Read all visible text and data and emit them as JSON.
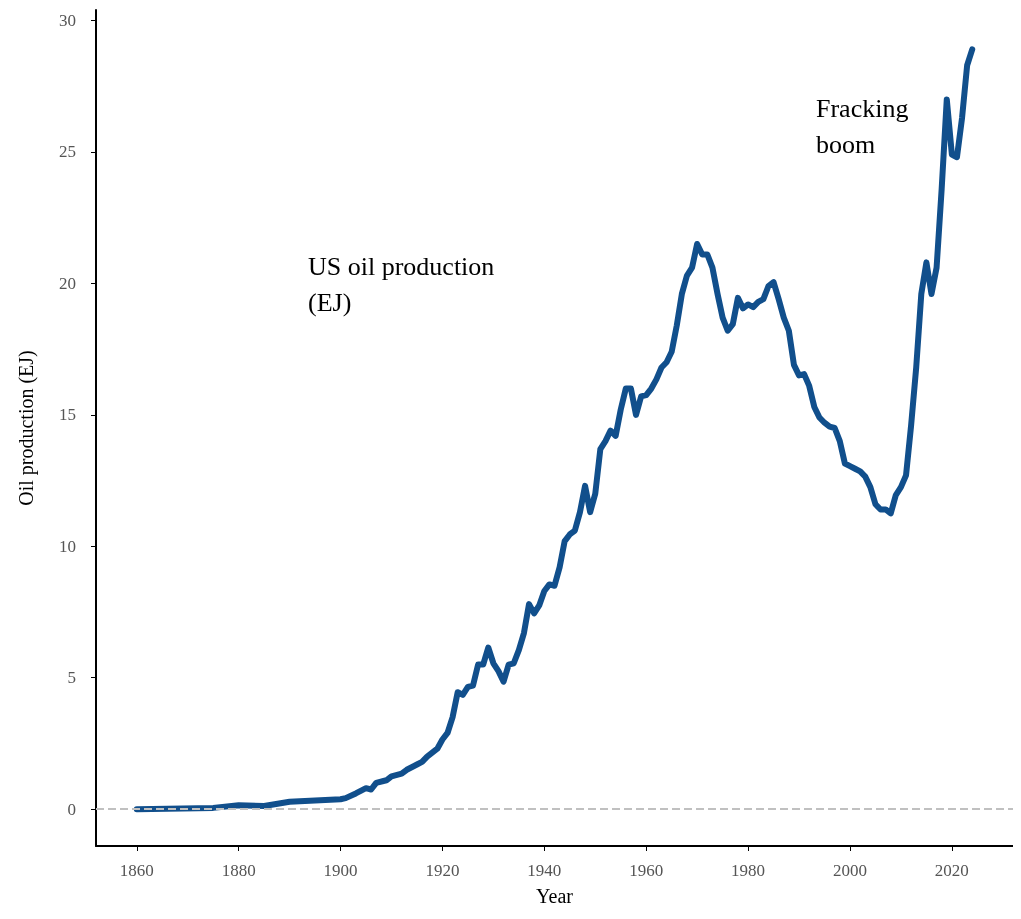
{
  "chart_data": {
    "type": "line",
    "xlabel": "Year",
    "ylabel": "Oil production (EJ)",
    "annotations": [
      "US oil production\n(EJ)",
      "Fracking\nboom"
    ],
    "x": [
      1860,
      1875,
      1880,
      1885,
      1890,
      1900,
      1901,
      1903,
      1905,
      1906,
      1907,
      1909,
      1910,
      1912,
      1913,
      1915,
      1916,
      1917,
      1919,
      1920,
      1921,
      1922,
      1923,
      1924,
      1925,
      1926,
      1927,
      1928,
      1929,
      1930,
      1931,
      1932,
      1933,
      1934,
      1935,
      1936,
      1937,
      1938,
      1939,
      1940,
      1941,
      1942,
      1943,
      1944,
      1945,
      1946,
      1947,
      1948,
      1949,
      1950,
      1951,
      1952,
      1953,
      1954,
      1955,
      1956,
      1957,
      1958,
      1959,
      1960,
      1961,
      1962,
      1963,
      1964,
      1965,
      1966,
      1967,
      1968,
      1969,
      1970,
      1971,
      1972,
      1973,
      1974,
      1975,
      1976,
      1977,
      1978,
      1979,
      1980,
      1981,
      1982,
      1983,
      1984,
      1985,
      1986,
      1987,
      1988,
      1989,
      1990,
      1991,
      1992,
      1993,
      1994,
      1995,
      1996,
      1997,
      1998,
      1999,
      2000,
      2001,
      2002,
      2003,
      2004,
      2005,
      2006,
      2007,
      2008,
      2009,
      2010,
      2011,
      2012,
      2013,
      2014,
      2015,
      2016,
      2017,
      2018,
      2019,
      2020,
      2021,
      2022,
      2023,
      2024
    ],
    "series": [
      {
        "color": "#114f8c",
        "values": [
          0,
          0.05,
          0.15,
          0.12,
          0.28,
          0.38,
          0.42,
          0.6,
          0.8,
          0.75,
          1.0,
          1.1,
          1.25,
          1.35,
          1.5,
          1.7,
          1.8,
          2.0,
          2.3,
          2.65,
          2.9,
          3.5,
          4.45,
          4.35,
          4.65,
          4.7,
          5.5,
          5.5,
          6.15,
          5.55,
          5.25,
          4.85,
          5.5,
          5.55,
          6.05,
          6.7,
          7.8,
          7.45,
          7.75,
          8.3,
          8.55,
          8.5,
          9.2,
          10.2,
          10.45,
          10.6,
          11.3,
          12.3,
          11.3,
          12.0,
          13.7,
          14.0,
          14.4,
          14.2,
          15.2,
          16.0,
          16.0,
          15.0,
          15.7,
          15.75,
          16.0,
          16.35,
          16.8,
          17.0,
          17.4,
          18.4,
          19.6,
          20.3,
          20.6,
          21.5,
          21.1,
          21.1,
          20.6,
          19.6,
          18.7,
          18.2,
          18.45,
          19.45,
          19.05,
          19.2,
          19.1,
          19.3,
          19.4,
          19.9,
          20.05,
          19.4,
          18.7,
          18.2,
          16.9,
          16.5,
          16.55,
          16.1,
          15.3,
          14.9,
          14.7,
          14.55,
          14.5,
          14.0,
          13.15,
          13.05,
          12.95,
          12.85,
          12.65,
          12.25,
          11.6,
          11.4,
          11.4,
          11.25,
          11.95,
          12.25,
          12.7,
          14.6,
          16.8,
          19.6,
          20.8,
          19.6,
          20.6,
          23.6,
          27.0,
          24.9,
          24.8,
          26.3,
          28.3,
          28.9
        ]
      }
    ],
    "xlim": [
      1852,
      2032
    ],
    "xticks": [
      1860,
      1880,
      1900,
      1920,
      1940,
      1960,
      1980,
      2000,
      2020
    ],
    "ylim": [
      -1.4,
      30.4
    ],
    "yticks": [
      0,
      5,
      10,
      15,
      20,
      25,
      30
    ],
    "ref_lines": [
      {
        "axis": "y",
        "value": 0,
        "color": "#c0c0c0",
        "line_style": "dashed"
      }
    ],
    "grid": false,
    "marker": "none",
    "line_style": "solid"
  }
}
